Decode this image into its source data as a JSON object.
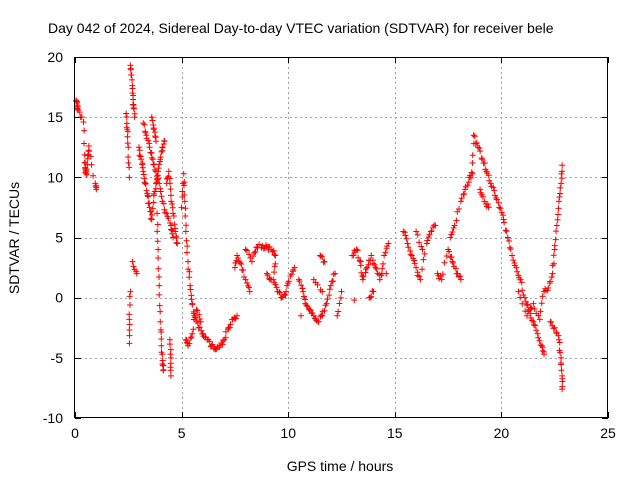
{
  "chart_data": {
    "type": "scatter",
    "title": "Day 042 of 2024, Sidereal Day-to-day VTEC variation (SDTVAR) for receiver bele",
    "xlabel": "GPS time / hours",
    "ylabel": "SDTVAR / TECUs",
    "xlim": [
      0,
      25
    ],
    "ylim": [
      -10,
      20
    ],
    "x_ticks": [
      0,
      5,
      10,
      15,
      20,
      25
    ],
    "x_tick_labels": [
      "0",
      "5",
      "10",
      "15",
      "20",
      "25"
    ],
    "y_ticks": [
      -10,
      -5,
      0,
      5,
      10,
      15,
      20
    ],
    "y_tick_labels": [
      "-10",
      "-5",
      "0",
      "5",
      "10",
      "15",
      "20"
    ],
    "grid": true,
    "marker": "+",
    "colors": {
      "series": "#ff0000",
      "grid": "#a0a0a0",
      "axes": "#000000"
    },
    "series": [
      {
        "name": "SDTVAR",
        "points": [
          [
            0.05,
            16.4
          ],
          [
            0.1,
            16.0
          ],
          [
            0.15,
            15.6
          ],
          [
            0.4,
            14.6
          ],
          [
            0.45,
            11.2
          ],
          [
            0.5,
            10.6
          ],
          [
            0.55,
            10.2
          ],
          [
            0.6,
            11.8
          ],
          [
            0.65,
            12.6
          ],
          [
            0.95,
            9.5
          ],
          [
            1.0,
            9.0
          ],
          [
            2.4,
            15.3
          ],
          [
            2.45,
            14.0
          ],
          [
            2.5,
            12.5
          ],
          [
            2.55,
            10.0
          ],
          [
            2.6,
            19.3
          ],
          [
            2.65,
            18.5
          ],
          [
            2.7,
            17.0
          ],
          [
            2.75,
            16.0
          ],
          [
            2.8,
            15.0
          ],
          [
            2.6,
            0.5
          ],
          [
            2.55,
            -1.8
          ],
          [
            2.55,
            -3.8
          ],
          [
            2.7,
            3.0
          ],
          [
            2.9,
            2.0
          ],
          [
            3.0,
            12.5
          ],
          [
            3.1,
            11.5
          ],
          [
            3.2,
            10.5
          ],
          [
            3.3,
            9.5
          ],
          [
            3.4,
            8.5
          ],
          [
            3.5,
            7.5
          ],
          [
            3.6,
            6.5
          ],
          [
            3.7,
            8.5
          ],
          [
            3.8,
            9.5
          ],
          [
            3.9,
            10.5
          ],
          [
            4.0,
            11.5
          ],
          [
            4.1,
            12.5
          ],
          [
            4.2,
            13.0
          ],
          [
            3.2,
            14.5
          ],
          [
            3.35,
            13.5
          ],
          [
            3.5,
            12.5
          ],
          [
            3.65,
            11.5
          ],
          [
            3.8,
            10.5
          ],
          [
            3.95,
            9.5
          ],
          [
            4.1,
            8.0
          ],
          [
            4.3,
            7.0
          ],
          [
            4.5,
            6.0
          ],
          [
            4.6,
            5.0
          ],
          [
            3.6,
            15.0
          ],
          [
            3.7,
            14.0
          ],
          [
            3.8,
            13.0
          ],
          [
            3.85,
            7.0
          ],
          [
            3.9,
            4.0
          ],
          [
            3.95,
            1.0
          ],
          [
            4.0,
            -2.0
          ],
          [
            4.05,
            -4.0
          ],
          [
            4.1,
            -5.5
          ],
          [
            4.15,
            -6.0
          ],
          [
            4.3,
            9.5
          ],
          [
            4.4,
            10.5
          ],
          [
            4.5,
            8.5
          ],
          [
            4.6,
            7.0
          ],
          [
            4.7,
            5.5
          ],
          [
            4.8,
            4.5
          ],
          [
            4.45,
            -3.5
          ],
          [
            4.5,
            -5.0
          ],
          [
            4.5,
            -6.5
          ],
          [
            5.0,
            7.5
          ],
          [
            5.1,
            10.3
          ],
          [
            5.15,
            8.0
          ],
          [
            5.2,
            5.5
          ],
          [
            5.3,
            3.0
          ],
          [
            5.4,
            1.0
          ],
          [
            5.5,
            -0.5
          ],
          [
            5.6,
            -1.5
          ],
          [
            5.8,
            -2.5
          ],
          [
            6.0,
            -3.0
          ],
          [
            6.2,
            -3.5
          ],
          [
            6.4,
            -4.0
          ],
          [
            6.6,
            -4.3
          ],
          [
            6.8,
            -4.0
          ],
          [
            7.0,
            -3.5
          ],
          [
            7.2,
            -2.5
          ],
          [
            7.4,
            -1.8
          ],
          [
            7.6,
            -1.5
          ],
          [
            5.2,
            -3.5
          ],
          [
            5.3,
            -4.0
          ],
          [
            5.5,
            -3.0
          ],
          [
            5.7,
            -1.0
          ],
          [
            5.9,
            -2.0
          ],
          [
            7.5,
            2.5
          ],
          [
            7.6,
            3.5
          ],
          [
            7.8,
            2.8
          ],
          [
            8.0,
            1.5
          ],
          [
            8.2,
            0.5
          ],
          [
            8.0,
            4.0
          ],
          [
            8.3,
            3.0
          ],
          [
            8.5,
            4.2
          ],
          [
            8.8,
            4.3
          ],
          [
            9.0,
            4.2
          ],
          [
            9.2,
            4.0
          ],
          [
            9.4,
            3.5
          ],
          [
            9.3,
            1.5
          ],
          [
            9.5,
            0.5
          ],
          [
            9.7,
            0.0
          ],
          [
            9.9,
            0.5
          ],
          [
            10.1,
            1.8
          ],
          [
            10.3,
            2.5
          ],
          [
            9.0,
            2.0
          ],
          [
            9.2,
            1.5
          ],
          [
            10.5,
            1.5
          ],
          [
            10.7,
            0.5
          ],
          [
            10.8,
            -0.5
          ],
          [
            11.0,
            -1.0
          ],
          [
            11.2,
            -1.5
          ],
          [
            11.4,
            -2.0
          ],
          [
            11.6,
            -1.5
          ],
          [
            11.8,
            -0.5
          ],
          [
            12.0,
            1.0
          ],
          [
            12.2,
            2.0
          ],
          [
            11.5,
            3.5
          ],
          [
            11.7,
            3.0
          ],
          [
            12.3,
            -1.5
          ],
          [
            12.5,
            0.5
          ],
          [
            10.6,
            -1.5
          ],
          [
            11.2,
            1.5
          ],
          [
            11.6,
            0.5
          ],
          [
            13.0,
            3.5
          ],
          [
            13.2,
            4.0
          ],
          [
            13.4,
            3.0
          ],
          [
            13.5,
            1.5
          ],
          [
            13.7,
            2.5
          ],
          [
            13.9,
            3.5
          ],
          [
            14.1,
            2.5
          ],
          [
            14.3,
            1.5
          ],
          [
            14.5,
            3.5
          ],
          [
            14.7,
            4.5
          ],
          [
            14.0,
            0.5
          ],
          [
            13.8,
            0.0
          ],
          [
            14.4,
            2.0
          ],
          [
            13.1,
            -0.2
          ],
          [
            14.6,
            2.0
          ],
          [
            15.4,
            5.5
          ],
          [
            15.6,
            4.5
          ],
          [
            15.8,
            3.5
          ],
          [
            16.0,
            2.5
          ],
          [
            16.2,
            1.5
          ],
          [
            16.5,
            4.5
          ],
          [
            16.7,
            5.5
          ],
          [
            16.9,
            6.0
          ],
          [
            16.0,
            5.5
          ],
          [
            16.3,
            4.0
          ],
          [
            17.0,
            2.0
          ],
          [
            17.2,
            1.5
          ],
          [
            17.5,
            4.0
          ],
          [
            17.7,
            3.0
          ],
          [
            17.9,
            2.0
          ],
          [
            18.1,
            1.5
          ],
          [
            17.6,
            5.0
          ],
          [
            17.8,
            6.0
          ],
          [
            18.1,
            8.0
          ],
          [
            18.3,
            9.0
          ],
          [
            18.5,
            10.0
          ],
          [
            18.65,
            10.3
          ],
          [
            18.7,
            13.5
          ],
          [
            18.9,
            12.5
          ],
          [
            19.1,
            11.5
          ],
          [
            19.3,
            10.5
          ],
          [
            19.5,
            9.5
          ],
          [
            19.7,
            8.5
          ],
          [
            19.9,
            7.5
          ],
          [
            20.1,
            6.5
          ],
          [
            20.3,
            5.0
          ],
          [
            20.5,
            3.5
          ],
          [
            20.7,
            2.5
          ],
          [
            20.9,
            1.5
          ],
          [
            21.1,
            0.0
          ],
          [
            21.3,
            -1.0
          ],
          [
            21.5,
            -2.0
          ],
          [
            21.7,
            -3.0
          ],
          [
            21.9,
            -4.0
          ],
          [
            22.0,
            -4.7
          ],
          [
            19.0,
            9.0
          ],
          [
            19.2,
            8.0
          ],
          [
            19.4,
            7.5
          ],
          [
            20.8,
            0.5
          ],
          [
            21.2,
            -1.5
          ],
          [
            21.5,
            -0.5
          ],
          [
            21.8,
            -1.8
          ],
          [
            22.0,
            0.5
          ],
          [
            22.2,
            0.8
          ],
          [
            22.4,
            2.0
          ],
          [
            22.5,
            4.0
          ],
          [
            22.6,
            6.0
          ],
          [
            22.7,
            8.0
          ],
          [
            22.8,
            9.5
          ],
          [
            22.85,
            11.0
          ],
          [
            22.3,
            -2.0
          ],
          [
            22.5,
            -2.5
          ],
          [
            22.7,
            -3.5
          ],
          [
            22.8,
            -5.0
          ],
          [
            22.85,
            -6.5
          ],
          [
            22.85,
            -7.6
          ]
        ]
      }
    ]
  }
}
